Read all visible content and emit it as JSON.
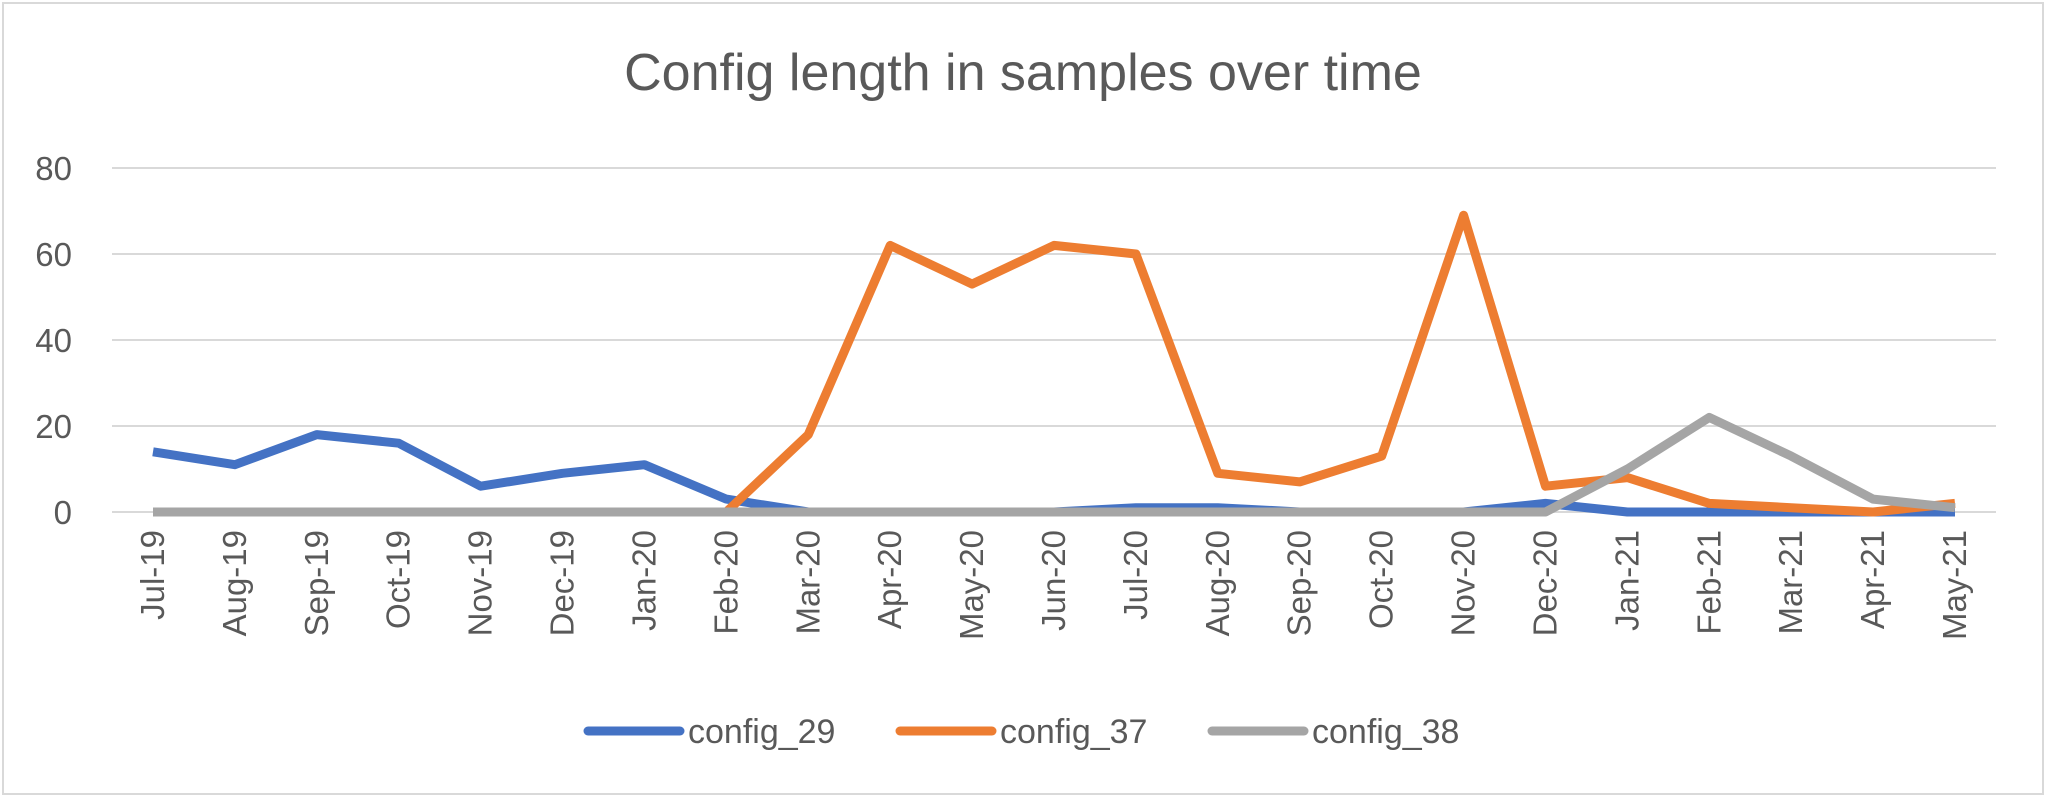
{
  "chart_data": {
    "type": "line",
    "title": "Config length in samples over time",
    "xlabel": "",
    "ylabel": "",
    "categories": [
      "Jul-19",
      "Aug-19",
      "Sep-19",
      "Oct-19",
      "Nov-19",
      "Dec-19",
      "Jan-20",
      "Feb-20",
      "Mar-20",
      "Apr-20",
      "May-20",
      "Jun-20",
      "Jul-20",
      "Aug-20",
      "Sep-20",
      "Oct-20",
      "Nov-20",
      "Dec-20",
      "Jan-21",
      "Feb-21",
      "Mar-21",
      "Apr-21",
      "May-21"
    ],
    "ylim": [
      0,
      80
    ],
    "yticks": [
      0,
      20,
      40,
      60,
      80
    ],
    "grid": true,
    "legend_position": "bottom",
    "series": [
      {
        "name": "config_29",
        "color": "#4472c4",
        "values": [
          14,
          11,
          18,
          16,
          6,
          9,
          11,
          3,
          0,
          0,
          0,
          0,
          1,
          1,
          0,
          0,
          0,
          2,
          0,
          0,
          0,
          0,
          0
        ]
      },
      {
        "name": "config_37",
        "color": "#ed7d31",
        "values": [
          null,
          null,
          null,
          null,
          null,
          null,
          null,
          0,
          18,
          62,
          53,
          62,
          60,
          9,
          7,
          13,
          69,
          6,
          8,
          2,
          1,
          0,
          2
        ]
      },
      {
        "name": "config_38",
        "color": "#a5a5a5",
        "values": [
          0,
          0,
          0,
          0,
          0,
          0,
          0,
          0,
          0,
          0,
          0,
          0,
          0,
          0,
          0,
          0,
          0,
          0,
          10,
          22,
          13,
          3,
          1
        ]
      }
    ]
  }
}
